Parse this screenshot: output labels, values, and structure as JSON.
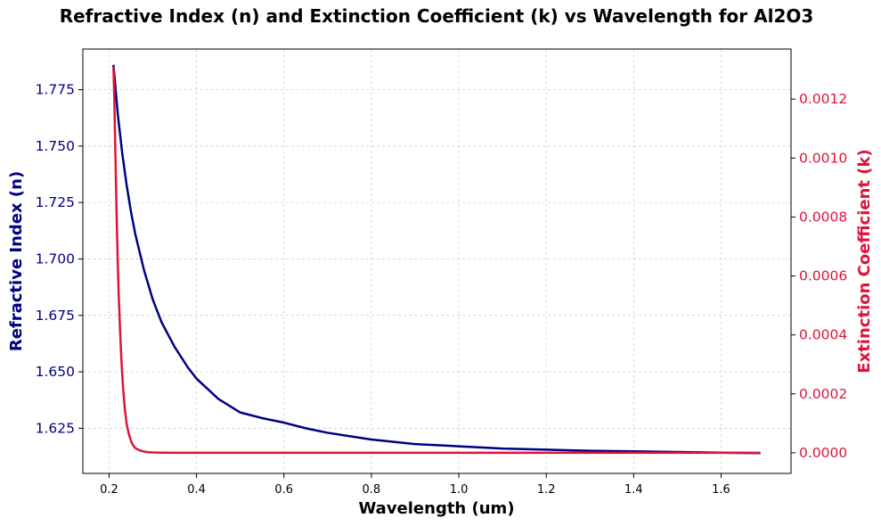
{
  "chart_data": {
    "type": "line",
    "title": "Refractive Index (n) and Extinction Coefficient (k) vs Wavelength for Al2O3",
    "xlabel": "Wavelength (um)",
    "ylabel_left": "Refractive Index (n)",
    "ylabel_right": "Extinction Coefficient (k)",
    "xlim": [
      0.14,
      1.76
    ],
    "ylim_left": [
      1.605,
      1.793
    ],
    "ylim_right": [
      -7e-05,
      0.00137
    ],
    "x_ticks": [
      "0.2",
      "0.4",
      "0.6",
      "0.8",
      "1.0",
      "1.2",
      "1.4",
      "1.6"
    ],
    "y_left_ticks": [
      "1.625",
      "1.650",
      "1.675",
      "1.700",
      "1.725",
      "1.750",
      "1.775"
    ],
    "y_right_ticks": [
      "0.0000",
      "0.0002",
      "0.0004",
      "0.0006",
      "0.0008",
      "0.0010",
      "0.0012"
    ],
    "grid": true,
    "colors": {
      "n": "#000080",
      "k": "#dc143c",
      "grid": "#c8c8c8"
    },
    "series": [
      {
        "axis": "left",
        "x": [
          0.21,
          0.22,
          0.23,
          0.24,
          0.25,
          0.26,
          0.28,
          0.3,
          0.32,
          0.35,
          0.38,
          0.4,
          0.45,
          0.5,
          0.55,
          0.6,
          0.65,
          0.7,
          0.8,
          0.9,
          1.0,
          1.1,
          1.2,
          1.3,
          1.4,
          1.5,
          1.6,
          1.69
        ],
        "values": [
          1.786,
          1.764,
          1.747,
          1.733,
          1.721,
          1.711,
          1.695,
          1.682,
          1.672,
          1.661,
          1.652,
          1.647,
          1.638,
          1.632,
          1.6295,
          1.6275,
          1.625,
          1.623,
          1.62,
          1.618,
          1.617,
          1.616,
          1.6155,
          1.615,
          1.6148,
          1.6145,
          1.6142,
          1.614
        ]
      },
      {
        "axis": "right",
        "x": [
          0.21,
          0.212,
          0.214,
          0.216,
          0.218,
          0.22,
          0.222,
          0.225,
          0.228,
          0.232,
          0.236,
          0.24,
          0.245,
          0.25,
          0.255,
          0.26,
          0.27,
          0.28,
          0.29,
          0.3,
          0.32,
          0.35,
          0.4,
          0.6,
          1.0,
          1.4,
          1.69
        ],
        "values": [
          0.00131,
          0.0012,
          0.00105,
          0.0009,
          0.00076,
          0.00064,
          0.00054,
          0.00042,
          0.00032,
          0.00022,
          0.00015,
          0.0001,
          6.5e-05,
          4e-05,
          2.5e-05,
          1.6e-05,
          8e-06,
          4e-06,
          2e-06,
          1e-06,
          4e-07,
          1e-07,
          0.0,
          0.0,
          0.0,
          0.0,
          0.0
        ]
      }
    ]
  }
}
